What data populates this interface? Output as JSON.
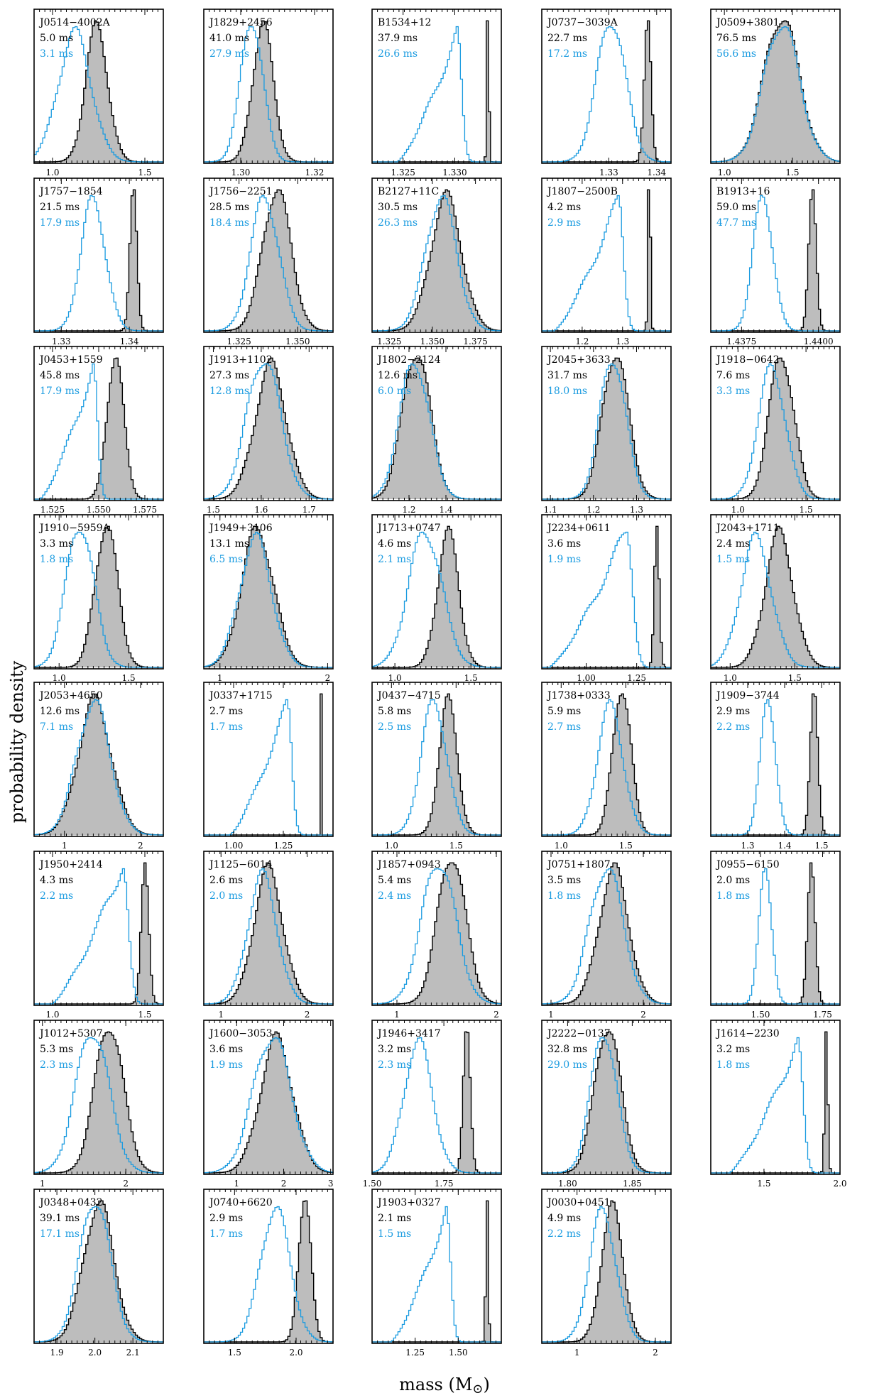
{
  "chart_data": {
    "type": "histogram-grid",
    "ylabel": "probability density",
    "xlabel": "mass (M",
    "xlabel_symbol": "⊙",
    "xlabel_close": ")",
    "colors": {
      "fill": "#bdbdbd",
      "stroke": "#000000",
      "blue": "#1a9be0"
    },
    "panels": [
      {
        "name": "J0514−4002A",
        "ms_black": "5.0 ms",
        "ms_blue": "3.1 ms",
        "xlim": [
          0.9,
          1.6
        ],
        "ticks": [
          1.0,
          1.5
        ],
        "tick_labels": [
          "1.0",
          "1.5"
        ],
        "gray": {
          "mu": 1.24,
          "sigma": 0.06
        },
        "blue": {
          "mu": 1.12,
          "sigma": 0.09,
          "shape": "normal"
        }
      },
      {
        "name": "J1829+2456",
        "ms_black": "41.0 ms",
        "ms_blue": "27.9 ms",
        "xlim": [
          1.29,
          1.325
        ],
        "ticks": [
          1.3,
          1.32
        ],
        "tick_labels": [
          "1.30",
          "1.32"
        ],
        "gray": {
          "mu": 1.306,
          "sigma": 0.0028
        },
        "blue": {
          "mu": 1.303,
          "sigma": 0.003,
          "shape": "normal"
        }
      },
      {
        "name": "B1534+12",
        "ms_black": "37.9 ms",
        "ms_blue": "26.6 ms",
        "xlim": [
          1.322,
          1.3345
        ],
        "ticks": [
          1.325,
          1.33
        ],
        "tick_labels": [
          "1.325",
          "1.330"
        ],
        "gray": {
          "mu": 1.3332,
          "sigma": 0.0001
        },
        "blue": {
          "mu": 1.3302,
          "sigma": 0.0018,
          "shape": "skew"
        }
      },
      {
        "name": "J0737−3039A",
        "ms_black": "22.7 ms",
        "ms_blue": "17.2 ms",
        "xlim": [
          1.316,
          1.343
        ],
        "ticks": [
          1.33,
          1.34
        ],
        "tick_labels": [
          "1.33",
          "1.34"
        ],
        "gray": {
          "mu": 1.3381,
          "sigma": 0.0007
        },
        "blue": {
          "mu": 1.3305,
          "sigma": 0.003,
          "shape": "normal"
        }
      },
      {
        "name": "J0509+3801",
        "ms_black": "76.5 ms",
        "ms_blue": "56.6 ms",
        "xlim": [
          0.9,
          1.85
        ],
        "ticks": [
          1.0,
          1.5
        ],
        "tick_labels": [
          "1.0",
          "1.5"
        ],
        "gray": {
          "mu": 1.42,
          "sigma": 0.13
        },
        "blue": {
          "mu": 1.42,
          "sigma": 0.13,
          "shape": "normal"
        }
      },
      {
        "name": "J1757−1854",
        "ms_black": "21.5 ms",
        "ms_blue": "17.9 ms",
        "xlim": [
          1.326,
          1.345
        ],
        "ticks": [
          1.33,
          1.34
        ],
        "tick_labels": [
          "1.33",
          "1.34"
        ],
        "gray": {
          "mu": 1.3406,
          "sigma": 0.0005
        },
        "blue": {
          "mu": 1.3347,
          "sigma": 0.0018,
          "shape": "normal"
        }
      },
      {
        "name": "J1756−2251",
        "ms_black": "28.5 ms",
        "ms_blue": "18.4 ms",
        "xlim": [
          1.31,
          1.365
        ],
        "ticks": [
          1.325,
          1.35
        ],
        "tick_labels": [
          "1.325",
          "1.350"
        ],
        "gray": {
          "mu": 1.341,
          "sigma": 0.006
        },
        "blue": {
          "mu": 1.336,
          "sigma": 0.006,
          "shape": "normal"
        }
      },
      {
        "name": "B2127+11C",
        "ms_black": "30.5 ms",
        "ms_blue": "26.3 ms",
        "xlim": [
          1.315,
          1.39
        ],
        "ticks": [
          1.325,
          1.35,
          1.375
        ],
        "tick_labels": [
          "1.325",
          "1.350",
          "1.375"
        ],
        "gray": {
          "mu": 1.358,
          "sigma": 0.009
        },
        "blue": {
          "mu": 1.355,
          "sigma": 0.009,
          "shape": "normal"
        }
      },
      {
        "name": "J1807−2500B",
        "ms_black": "4.2 ms",
        "ms_blue": "2.9 ms",
        "xlim": [
          1.1,
          1.42
        ],
        "ticks": [
          1.2,
          1.3
        ],
        "tick_labels": [
          "1.2",
          "1.3"
        ],
        "gray": {
          "mu": 1.366,
          "sigma": 0.003
        },
        "blue": {
          "mu": 1.29,
          "sigma": 0.05,
          "shape": "skew"
        }
      },
      {
        "name": "B1913+16",
        "ms_black": "59.0 ms",
        "ms_blue": "47.7 ms",
        "xlim": [
          1.4365,
          1.4407
        ],
        "ticks": [
          1.4375,
          1.44
        ],
        "tick_labels": [
          "1.4375",
          "1.4400"
        ],
        "gray": {
          "mu": 1.4398,
          "sigma": 0.00012
        },
        "blue": {
          "mu": 1.4382,
          "sigma": 0.00032,
          "shape": "normal"
        }
      },
      {
        "name": "J0453+1559",
        "ms_black": "45.8 ms",
        "ms_blue": "17.9 ms",
        "xlim": [
          1.515,
          1.585
        ],
        "ticks": [
          1.525,
          1.55,
          1.575
        ],
        "tick_labels": [
          "1.525",
          "1.550",
          "1.575"
        ],
        "gray": {
          "mu": 1.559,
          "sigma": 0.0045
        },
        "blue": {
          "mu": 1.547,
          "sigma": 0.009,
          "shape": "skew"
        }
      },
      {
        "name": "J1913+1102",
        "ms_black": "27.3 ms",
        "ms_blue": "12.8 ms",
        "xlim": [
          1.48,
          1.75
        ],
        "ticks": [
          1.5,
          1.6,
          1.7
        ],
        "tick_labels": [
          "1.5",
          "1.6",
          "1.7"
        ],
        "gray": {
          "mu": 1.62,
          "sigma": 0.033
        },
        "blue": {
          "mu": 1.605,
          "sigma": 0.035,
          "shape": "normal"
        }
      },
      {
        "name": "J1802−2124",
        "ms_black": "12.6 ms",
        "ms_blue": "6.0 ms",
        "xlim": [
          1.0,
          1.7
        ],
        "ticks": [
          1.2,
          1.4
        ],
        "tick_labels": [
          "1.2",
          "1.4"
        ],
        "gray": {
          "mu": 1.24,
          "sigma": 0.075
        },
        "blue": {
          "mu": 1.23,
          "sigma": 0.08,
          "shape": "normal"
        }
      },
      {
        "name": "J2045+3633",
        "ms_black": "31.7 ms",
        "ms_blue": "18.0 ms",
        "xlim": [
          1.08,
          1.38
        ],
        "ticks": [
          1.1,
          1.2,
          1.3
        ],
        "tick_labels": [
          "1.1",
          "1.2",
          "1.3"
        ],
        "gray": {
          "mu": 1.251,
          "sigma": 0.03
        },
        "blue": {
          "mu": 1.245,
          "sigma": 0.03,
          "shape": "normal"
        }
      },
      {
        "name": "J1918−0642",
        "ms_black": "7.6 ms",
        "ms_blue": "3.3 ms",
        "xlim": [
          0.8,
          1.75
        ],
        "ticks": [
          1.0,
          1.5
        ],
        "tick_labels": [
          "1.0",
          "1.5"
        ],
        "gray": {
          "mu": 1.32,
          "sigma": 0.09
        },
        "blue": {
          "mu": 1.25,
          "sigma": 0.1,
          "shape": "normal"
        }
      },
      {
        "name": "J1910−5959A",
        "ms_black": "3.3 ms",
        "ms_blue": "1.8 ms",
        "xlim": [
          0.82,
          1.75
        ],
        "ticks": [
          1.0,
          1.5
        ],
        "tick_labels": [
          "1.0",
          "1.5"
        ],
        "gray": {
          "mu": 1.34,
          "sigma": 0.08
        },
        "blue": {
          "mu": 1.15,
          "sigma": 0.1,
          "shape": "normal"
        }
      },
      {
        "name": "J1949+3106",
        "ms_black": "13.1 ms",
        "ms_blue": "6.5 ms",
        "xlim": [
          0.85,
          2.05
        ],
        "ticks": [
          1,
          2
        ],
        "tick_labels": [
          "1",
          "2"
        ],
        "gray": {
          "mu": 1.35,
          "sigma": 0.15
        },
        "blue": {
          "mu": 1.33,
          "sigma": 0.15,
          "shape": "normal"
        }
      },
      {
        "name": "J1713+0747",
        "ms_black": "4.6 ms",
        "ms_blue": "2.1 ms",
        "xlim": [
          0.85,
          1.7
        ],
        "ticks": [
          1.0,
          1.5
        ],
        "tick_labels": [
          "1.0",
          "1.5"
        ],
        "gray": {
          "mu": 1.35,
          "sigma": 0.07
        },
        "blue": {
          "mu": 1.2,
          "sigma": 0.11,
          "shape": "normal"
        }
      },
      {
        "name": "J2234+0611",
        "ms_black": "3.6 ms",
        "ms_blue": "1.9 ms",
        "xlim": [
          0.78,
          1.42
        ],
        "ticks": [
          1.0,
          1.25
        ],
        "tick_labels": [
          "1.00",
          "1.25"
        ],
        "gray": {
          "mu": 1.35,
          "sigma": 0.012
        },
        "blue": {
          "mu": 1.2,
          "sigma": 0.12,
          "shape": "skew"
        }
      },
      {
        "name": "J2043+1711",
        "ms_black": "2.4 ms",
        "ms_blue": "1.5 ms",
        "xlim": [
          0.85,
          1.85
        ],
        "ticks": [
          1.0,
          1.5
        ],
        "tick_labels": [
          "1.0",
          "1.5"
        ],
        "gray": {
          "mu": 1.38,
          "sigma": 0.11
        },
        "blue": {
          "mu": 1.2,
          "sigma": 0.12,
          "shape": "normal"
        }
      },
      {
        "name": "J2053+4650",
        "ms_black": "12.6 ms",
        "ms_blue": "7.1 ms",
        "xlim": [
          0.6,
          2.3
        ],
        "ticks": [
          1,
          2
        ],
        "tick_labels": [
          "1",
          "2"
        ],
        "gray": {
          "mu": 1.4,
          "sigma": 0.22
        },
        "blue": {
          "mu": 1.38,
          "sigma": 0.22,
          "shape": "normal"
        }
      },
      {
        "name": "J0337+1715",
        "ms_black": "2.7 ms",
        "ms_blue": "1.7 ms",
        "xlim": [
          0.85,
          1.5
        ],
        "ticks": [
          1.0,
          1.25
        ],
        "tick_labels": [
          "1.00",
          "1.25"
        ],
        "gray": {
          "mu": 1.4378,
          "sigma": 0.0013
        },
        "blue": {
          "mu": 1.27,
          "sigma": 0.09,
          "shape": "skew"
        }
      },
      {
        "name": "J0437−4715",
        "ms_black": "5.8 ms",
        "ms_blue": "2.5 ms",
        "xlim": [
          0.85,
          1.85
        ],
        "ticks": [
          1.0,
          1.5
        ],
        "tick_labels": [
          "1.0",
          "1.5"
        ],
        "gray": {
          "mu": 1.44,
          "sigma": 0.07
        },
        "blue": {
          "mu": 1.33,
          "sigma": 0.1,
          "shape": "normal"
        }
      },
      {
        "name": "J1738+0333",
        "ms_black": "5.9 ms",
        "ms_blue": "2.7 ms",
        "xlim": [
          0.85,
          1.85
        ],
        "ticks": [
          1.0,
          1.5
        ],
        "tick_labels": [
          "1.0",
          "1.5"
        ],
        "gray": {
          "mu": 1.47,
          "sigma": 0.07
        },
        "blue": {
          "mu": 1.38,
          "sigma": 0.1,
          "shape": "normal"
        }
      },
      {
        "name": "J1909−3744",
        "ms_black": "2.9 ms",
        "ms_blue": "2.2 ms",
        "xlim": [
          1.2,
          1.55
        ],
        "ticks": [
          1.3,
          1.4,
          1.5
        ],
        "tick_labels": [
          "1.3",
          "1.4",
          "1.5"
        ],
        "gray": {
          "mu": 1.48,
          "sigma": 0.01
        },
        "blue": {
          "mu": 1.355,
          "sigma": 0.02,
          "shape": "normal"
        }
      },
      {
        "name": "J1950+2414",
        "ms_black": "4.3 ms",
        "ms_blue": "2.2 ms",
        "xlim": [
          0.9,
          1.6
        ],
        "ticks": [
          1.0,
          1.5
        ],
        "tick_labels": [
          "1.0",
          "1.5"
        ],
        "gray": {
          "mu": 1.5,
          "sigma": 0.02
        },
        "blue": {
          "mu": 1.38,
          "sigma": 0.12,
          "shape": "skew"
        }
      },
      {
        "name": "J1125−6014",
        "ms_black": "2.6 ms",
        "ms_blue": "2.0 ms",
        "xlim": [
          0.8,
          2.3
        ],
        "ticks": [
          1,
          2
        ],
        "tick_labels": [
          "1",
          "2"
        ],
        "gray": {
          "mu": 1.55,
          "sigma": 0.17
        },
        "blue": {
          "mu": 1.48,
          "sigma": 0.17,
          "shape": "normal"
        }
      },
      {
        "name": "J1857+0943",
        "ms_black": "5.4 ms",
        "ms_blue": "2.4 ms",
        "xlim": [
          0.75,
          2.05
        ],
        "ticks": [
          1,
          2
        ],
        "tick_labels": [
          "1",
          "2"
        ],
        "gray": {
          "mu": 1.55,
          "sigma": 0.14
        },
        "blue": {
          "mu": 1.42,
          "sigma": 0.17,
          "shape": "normal"
        }
      },
      {
        "name": "J0751+1807",
        "ms_black": "3.5 ms",
        "ms_blue": "1.8 ms",
        "xlim": [
          0.9,
          2.3
        ],
        "ticks": [
          1,
          2
        ],
        "tick_labels": [
          "1",
          "2"
        ],
        "gray": {
          "mu": 1.68,
          "sigma": 0.16
        },
        "blue": {
          "mu": 1.6,
          "sigma": 0.18,
          "shape": "normal"
        }
      },
      {
        "name": "J0955−6150",
        "ms_black": "2.0 ms",
        "ms_blue": "1.8 ms",
        "xlim": [
          1.3,
          1.82
        ],
        "ticks": [
          1.5,
          1.75
        ],
        "tick_labels": [
          "1.50",
          "1.75"
        ],
        "gray": {
          "mu": 1.705,
          "sigma": 0.015
        },
        "blue": {
          "mu": 1.52,
          "sigma": 0.025,
          "shape": "normal"
        }
      },
      {
        "name": "J1012+5307",
        "ms_black": "5.3 ms",
        "ms_blue": "2.3 ms",
        "xlim": [
          0.9,
          2.45
        ],
        "ticks": [
          1,
          2
        ],
        "tick_labels": [
          "1",
          "2"
        ],
        "gray": {
          "mu": 1.8,
          "sigma": 0.17
        },
        "blue": {
          "mu": 1.6,
          "sigma": 0.2,
          "shape": "normal"
        }
      },
      {
        "name": "J1600−3053",
        "ms_black": "3.6 ms",
        "ms_blue": "1.9 ms",
        "xlim": [
          0.3,
          3.05
        ],
        "ticks": [
          1,
          2,
          3
        ],
        "tick_labels": [
          "1",
          "2",
          "3"
        ],
        "gray": {
          "mu": 1.85,
          "sigma": 0.35
        },
        "blue": {
          "mu": 1.75,
          "sigma": 0.4,
          "shape": "normal"
        }
      },
      {
        "name": "J1946+3417",
        "ms_black": "3.2 ms",
        "ms_blue": "2.3 ms",
        "xlim": [
          1.5,
          1.95
        ],
        "ticks": [
          1.5,
          1.75
        ],
        "tick_labels": [
          "1.50",
          "1.75"
        ],
        "gray": {
          "mu": 1.83,
          "sigma": 0.012
        },
        "blue": {
          "mu": 1.66,
          "sigma": 0.05,
          "shape": "normal"
        }
      },
      {
        "name": "J2222−0137",
        "ms_black": "32.8 ms",
        "ms_blue": "29.0 ms",
        "xlim": [
          1.78,
          1.88
        ],
        "ticks": [
          1.8,
          1.85
        ],
        "tick_labels": [
          "1.80",
          "1.85"
        ],
        "gray": {
          "mu": 1.831,
          "sigma": 0.01
        },
        "blue": {
          "mu": 1.828,
          "sigma": 0.01,
          "shape": "normal"
        }
      },
      {
        "name": "J1614−2230",
        "ms_black": "3.2 ms",
        "ms_blue": "1.8 ms",
        "xlim": [
          1.15,
          2.0
        ],
        "ticks": [
          1.5,
          2.0
        ],
        "tick_labels": [
          "1.5",
          "2.0"
        ],
        "gray": {
          "mu": 1.91,
          "sigma": 0.01
        },
        "blue": {
          "mu": 1.72,
          "sigma": 0.14,
          "shape": "skew"
        }
      },
      {
        "name": "J0348+0432",
        "ms_black": "39.1 ms",
        "ms_blue": "17.1 ms",
        "xlim": [
          1.84,
          2.18
        ],
        "ticks": [
          1.9,
          2.0,
          2.1
        ],
        "tick_labels": [
          "1.9",
          "2.0",
          "2.1"
        ],
        "gray": {
          "mu": 2.01,
          "sigma": 0.04
        },
        "blue": {
          "mu": 2.0,
          "sigma": 0.04,
          "shape": "normal"
        }
      },
      {
        "name": "J0740+6620",
        "ms_black": "2.9 ms",
        "ms_blue": "1.7 ms",
        "xlim": [
          1.25,
          2.3
        ],
        "ticks": [
          1.5,
          2.0
        ],
        "tick_labels": [
          "1.5",
          "2.0"
        ],
        "gray": {
          "mu": 2.07,
          "sigma": 0.05
        },
        "blue": {
          "mu": 1.83,
          "sigma": 0.12,
          "shape": "normal"
        }
      },
      {
        "name": "J1903+0327",
        "ms_black": "2.1 ms",
        "ms_blue": "1.5 ms",
        "xlim": [
          1.0,
          1.75
        ],
        "ticks": [
          1.25,
          1.5
        ],
        "tick_labels": [
          "1.25",
          "1.50"
        ],
        "gray": {
          "mu": 1.667,
          "sigma": 0.007
        },
        "blue": {
          "mu": 1.43,
          "sigma": 0.1,
          "shape": "skew"
        }
      },
      {
        "name": "J0030+0451",
        "ms_black": "4.9 ms",
        "ms_blue": "2.2 ms",
        "xlim": [
          0.55,
          2.2
        ],
        "ticks": [
          1,
          2
        ],
        "tick_labels": [
          "1",
          "2"
        ],
        "gray": {
          "mu": 1.45,
          "sigma": 0.14
        },
        "blue": {
          "mu": 1.33,
          "sigma": 0.17,
          "shape": "normal"
        }
      }
    ]
  }
}
